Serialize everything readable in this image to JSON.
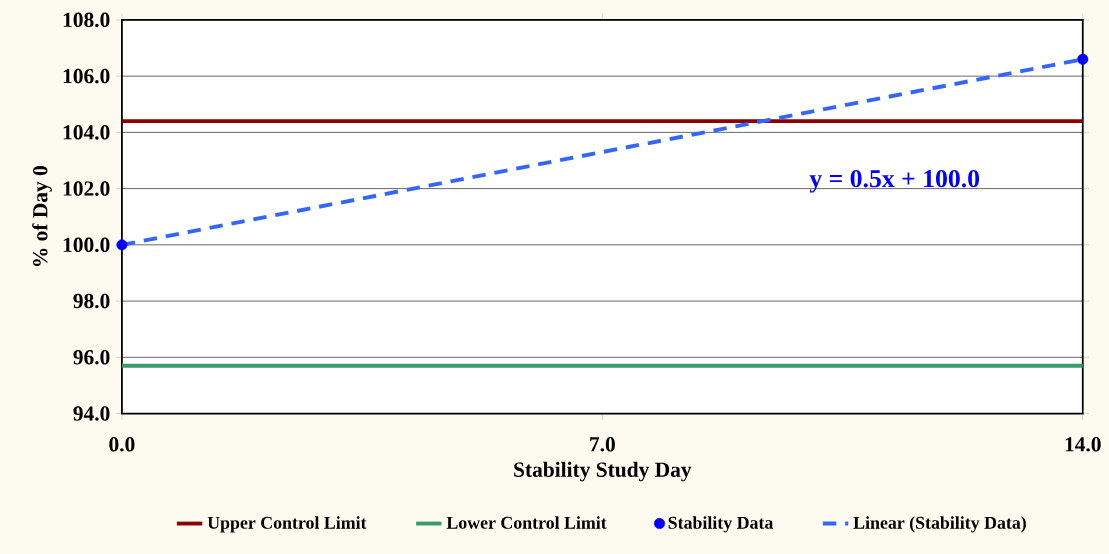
{
  "chart_data": {
    "type": "scatter",
    "xlabel": "Stability Study Day",
    "ylabel": "% of Day 0",
    "xlim": [
      0,
      14
    ],
    "xticks": [
      {
        "value": 0,
        "label": "0.0"
      },
      {
        "value": 7,
        "label": "7.0"
      },
      {
        "value": 14,
        "label": "14.0"
      }
    ],
    "ylim": [
      94,
      108
    ],
    "yticks": [
      {
        "value": 94,
        "label": "94.0"
      },
      {
        "value": 96,
        "label": "96.0"
      },
      {
        "value": 98,
        "label": "98.0"
      },
      {
        "value": 100,
        "label": "100.0"
      },
      {
        "value": 102,
        "label": "102.0"
      },
      {
        "value": 104,
        "label": "104.0"
      },
      {
        "value": 106,
        "label": "106.0"
      },
      {
        "value": 108,
        "label": "108.0"
      }
    ],
    "grid": "y",
    "legend": "bottom",
    "ref_lines": [
      {
        "axis": "y",
        "value": 104.4,
        "label": "Upper Control Limit",
        "color": "#8b0000",
        "line_style": "solid"
      },
      {
        "axis": "y",
        "value": 95.7,
        "label": "Lower Control Limit",
        "color": "#3a9a6a",
        "line_style": "solid"
      }
    ],
    "series": [
      {
        "name": "Stability Data",
        "color": "#0000ff",
        "values": [
          100.0,
          106.6
        ],
        "marker": "circle"
      },
      {
        "name": "Linear (Stability Data)",
        "type": "line",
        "color": "#3366ff",
        "values": [
          100.0,
          106.6
        ],
        "marker": "none",
        "line_style": "dashed"
      }
    ],
    "x": [
      0,
      14
    ],
    "annotations": [
      "y = 0.5x + 100.0"
    ]
  }
}
